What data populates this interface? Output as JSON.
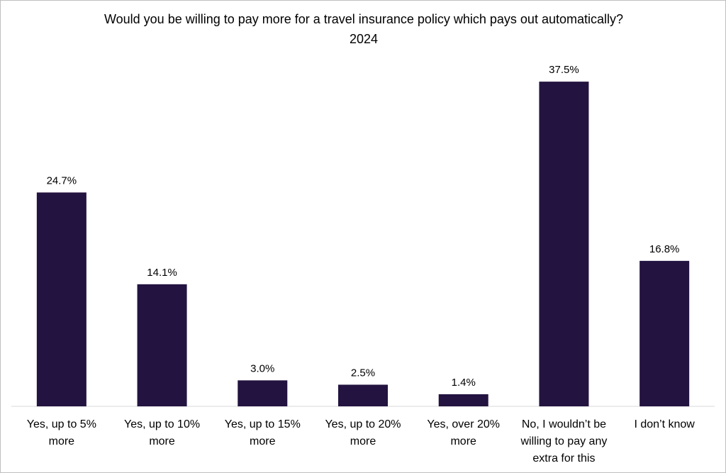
{
  "chart_data": {
    "type": "bar",
    "title": "Would you be willing to pay more for a travel insurance policy which pays out automatically? 2024",
    "categories": [
      "Yes, up to 5% more",
      "Yes, up to 10% more",
      "Yes, up to 15% more",
      "Yes, up to 20% more",
      "Yes, over 20% more",
      "No, I wouldn’t be willing to pay any extra for this",
      "I don’t know"
    ],
    "values": [
      24.7,
      14.1,
      3.0,
      2.5,
      1.4,
      37.5,
      16.8
    ],
    "value_labels": [
      "24.7%",
      "14.1%",
      "3.0%",
      "2.5%",
      "1.4%",
      "37.5%",
      "16.8%"
    ],
    "color": "#231340"
  }
}
